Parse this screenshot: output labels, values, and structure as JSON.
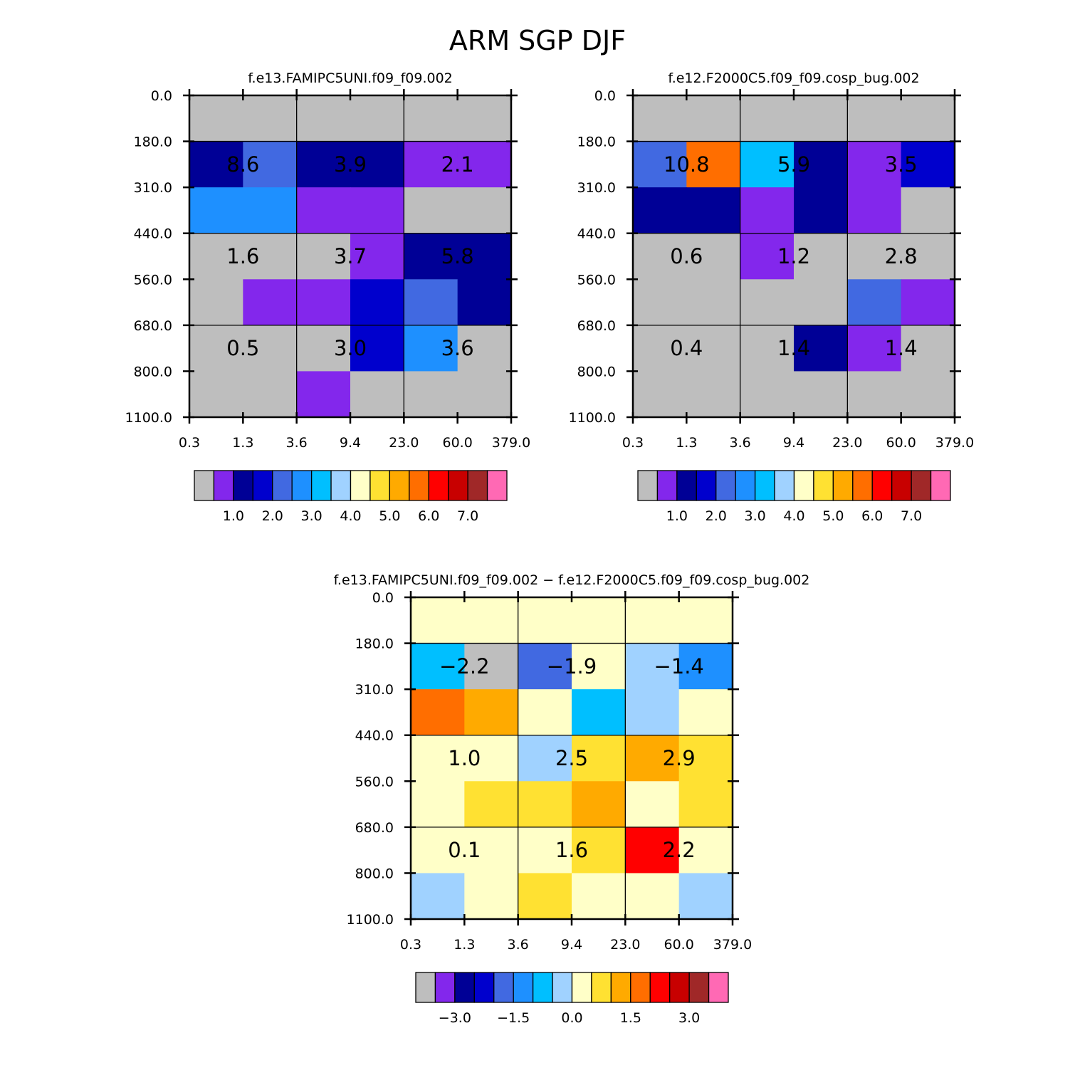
{
  "figure_title": "ARM SGP DJF",
  "palette": {
    "gray": "#bebebe",
    "c1": "#8327ec",
    "c2": "#000096",
    "c3": "#0000cd",
    "c4": "#4169e1",
    "c5": "#1e90ff",
    "c6": "#00bfff",
    "c7": "#a0d2ff",
    "c8": "#ffffc8",
    "c9": "#ffe132",
    "c10": "#ffaa00",
    "c11": "#ff6e00",
    "c12": "#ff0000",
    "c13": "#c80000",
    "c14": "#a02828",
    "c15": "#ff69b4"
  },
  "chart_data": [
    {
      "type": "heatmap",
      "title": "f.e13.FAMIPC5UNI.f09_f09.002",
      "x_ticks": [
        "0.3",
        "1.3",
        "3.6",
        "9.4",
        "23.0",
        "60.0",
        "379.0"
      ],
      "y_ticks": [
        "0.0",
        "180.0",
        "310.0",
        "440.0",
        "560.0",
        "680.0",
        "800.0",
        "1100.0"
      ],
      "cells": [
        [
          "gray",
          "gray",
          "gray",
          "gray",
          "gray",
          "gray"
        ],
        [
          "c2",
          "c4",
          "c2",
          "c2",
          "c1",
          "c1"
        ],
        [
          "c5",
          "c5",
          "c1",
          "c1",
          "gray",
          "gray"
        ],
        [
          "gray",
          "gray",
          "gray",
          "c1",
          "c2",
          "c2"
        ],
        [
          "gray",
          "c1",
          "c1",
          "c3",
          "c4",
          "c2"
        ],
        [
          "gray",
          "gray",
          "gray",
          "c3",
          "c5",
          "gray"
        ],
        [
          "gray",
          "gray",
          "c1",
          "gray",
          "gray",
          "gray"
        ]
      ],
      "box_values": [
        [
          "8.6",
          "3.9",
          "2.1"
        ],
        [
          "1.6",
          "3.7",
          "5.8"
        ],
        [
          "0.5",
          "3.0",
          "3.6"
        ]
      ],
      "colorbar": {
        "colors": [
          "gray",
          "c1",
          "c2",
          "c3",
          "c4",
          "c5",
          "c6",
          "c7",
          "c8",
          "c9",
          "c10",
          "c11",
          "c12",
          "c13",
          "c14",
          "c15"
        ],
        "labels": [
          {
            "text": "1.0",
            "at": 2
          },
          {
            "text": "2.0",
            "at": 4
          },
          {
            "text": "3.0",
            "at": 6
          },
          {
            "text": "4.0",
            "at": 8
          },
          {
            "text": "5.0",
            "at": 10
          },
          {
            "text": "6.0",
            "at": 12
          },
          {
            "text": "7.0",
            "at": 14
          }
        ]
      }
    },
    {
      "type": "heatmap",
      "title": "f.e12.F2000C5.f09_f09.cosp_bug.002",
      "x_ticks": [
        "0.3",
        "1.3",
        "3.6",
        "9.4",
        "23.0",
        "60.0",
        "379.0"
      ],
      "y_ticks": [
        "0.0",
        "180.0",
        "310.0",
        "440.0",
        "560.0",
        "680.0",
        "800.0",
        "1100.0"
      ],
      "cells": [
        [
          "gray",
          "gray",
          "gray",
          "gray",
          "gray",
          "gray"
        ],
        [
          "c4",
          "c11",
          "c6",
          "c2",
          "c1",
          "c3"
        ],
        [
          "c2",
          "c2",
          "c1",
          "c2",
          "c1",
          "gray"
        ],
        [
          "gray",
          "gray",
          "c1",
          "gray",
          "gray",
          "gray"
        ],
        [
          "gray",
          "gray",
          "gray",
          "gray",
          "c4",
          "c1"
        ],
        [
          "gray",
          "gray",
          "gray",
          "c2",
          "c1",
          "gray"
        ],
        [
          "gray",
          "gray",
          "gray",
          "gray",
          "gray",
          "gray"
        ]
      ],
      "box_values": [
        [
          "10.8",
          "5.9",
          "3.5"
        ],
        [
          "0.6",
          "1.2",
          "2.8"
        ],
        [
          "0.4",
          "1.4",
          "1.4"
        ]
      ],
      "colorbar": {
        "colors": [
          "gray",
          "c1",
          "c2",
          "c3",
          "c4",
          "c5",
          "c6",
          "c7",
          "c8",
          "c9",
          "c10",
          "c11",
          "c12",
          "c13",
          "c14",
          "c15"
        ],
        "labels": [
          {
            "text": "1.0",
            "at": 2
          },
          {
            "text": "2.0",
            "at": 4
          },
          {
            "text": "3.0",
            "at": 6
          },
          {
            "text": "4.0",
            "at": 8
          },
          {
            "text": "5.0",
            "at": 10
          },
          {
            "text": "6.0",
            "at": 12
          },
          {
            "text": "7.0",
            "at": 14
          }
        ]
      }
    },
    {
      "type": "heatmap",
      "title": "f.e13.FAMIPC5UNI.f09_f09.002 − f.e12.F2000C5.f09_f09.cosp_bug.002",
      "x_ticks": [
        "0.3",
        "1.3",
        "3.6",
        "9.4",
        "23.0",
        "60.0",
        "379.0"
      ],
      "y_ticks": [
        "0.0",
        "180.0",
        "310.0",
        "440.0",
        "560.0",
        "680.0",
        "800.0",
        "1100.0"
      ],
      "cells": [
        [
          "c8",
          "c8",
          "c8",
          "c8",
          "c8",
          "c8"
        ],
        [
          "c6",
          "gray",
          "c4",
          "c8",
          "c7",
          "c5"
        ],
        [
          "c11",
          "c10",
          "c8",
          "c6",
          "c7",
          "c8"
        ],
        [
          "c8",
          "c8",
          "c7",
          "c9",
          "c10",
          "c9"
        ],
        [
          "c8",
          "c9",
          "c9",
          "c10",
          "c8",
          "c9"
        ],
        [
          "c8",
          "c8",
          "c8",
          "c9",
          "c12",
          "c8"
        ],
        [
          "c7",
          "c8",
          "c9",
          "c8",
          "c8",
          "c7"
        ]
      ],
      "box_values": [
        [
          "−2.2",
          "−1.9",
          "−1.4"
        ],
        [
          "1.0",
          "2.5",
          "2.9"
        ],
        [
          "0.1",
          "1.6",
          "2.2"
        ]
      ],
      "colorbar": {
        "colors": [
          "gray",
          "c1",
          "c2",
          "c3",
          "c4",
          "c5",
          "c6",
          "c7",
          "c8",
          "c9",
          "c10",
          "c11",
          "c12",
          "c13",
          "c14",
          "c15"
        ],
        "labels": [
          {
            "text": "−3.0",
            "at": 2
          },
          {
            "text": "−1.5",
            "at": 5
          },
          {
            "text": "0.0",
            "at": 8
          },
          {
            "text": "1.5",
            "at": 11
          },
          {
            "text": "3.0",
            "at": 14
          }
        ]
      }
    }
  ]
}
